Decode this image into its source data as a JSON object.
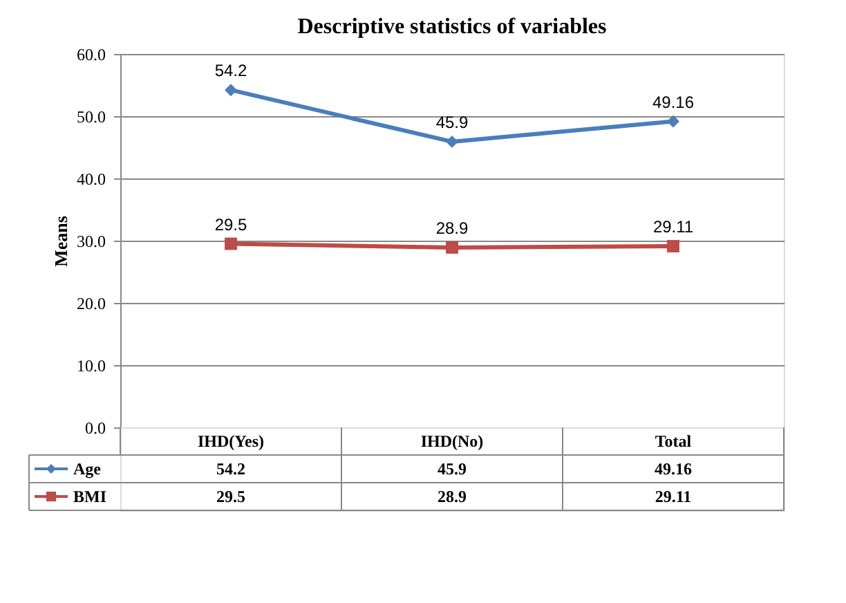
{
  "chart_data": {
    "type": "line",
    "title": "Descriptive statistics of variables",
    "ylabel": "Means",
    "categories": [
      "IHD(Yes)",
      "IHD(No)",
      "Total"
    ],
    "series": [
      {
        "name": "Age",
        "color": "#4a7ebb",
        "marker": "diamond",
        "values": [
          54.2,
          45.9,
          49.16
        ],
        "value_labels": [
          "54.2",
          "45.9",
          "49.16"
        ]
      },
      {
        "name": "BMI",
        "color": "#be4b48",
        "marker": "square",
        "values": [
          29.5,
          28.9,
          29.11
        ],
        "value_labels": [
          "29.5",
          "28.9",
          "29.11"
        ]
      }
    ],
    "ylim": [
      0,
      60
    ],
    "yticks": [
      {
        "value": 0,
        "label": "0.0"
      },
      {
        "value": 10,
        "label": "10.0"
      },
      {
        "value": 20,
        "label": "20.0"
      },
      {
        "value": 30,
        "label": "30.0"
      },
      {
        "value": 40,
        "label": "40.0"
      },
      {
        "value": 50,
        "label": "50.0"
      },
      {
        "value": 60,
        "label": "60.0"
      }
    ],
    "annotations": [
      "54.2",
      "45.9",
      "49.16",
      "29.5",
      "28.9",
      "29.11"
    ],
    "grid": "y",
    "legend": "bottom",
    "line_style": "solid"
  }
}
